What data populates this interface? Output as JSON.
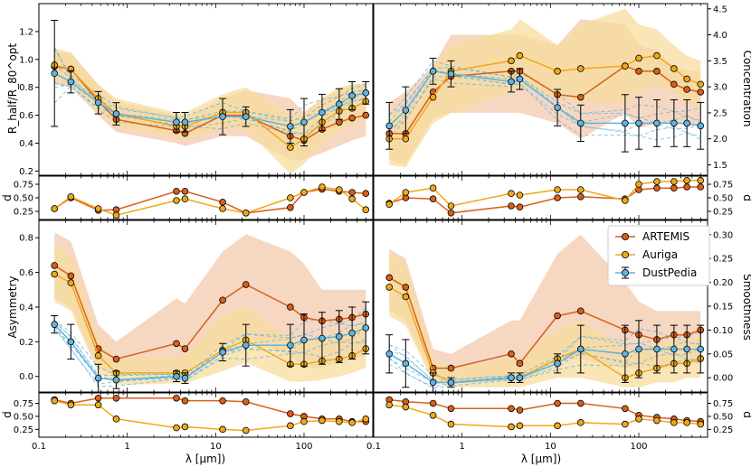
{
  "colors": {
    "artemis": "#d95f1a",
    "auriga": "#f0a81a",
    "dustpedia": "#5fb4e0",
    "artemis_band": "#f3c9ac",
    "auriga_band": "#f7dc9d",
    "dash": "#5fb4e0"
  },
  "legend": {
    "artemis": "ARTEMIS",
    "auriga": "Auriga",
    "dustpedia": "DustPedia"
  },
  "axes": {
    "xlabel": "λ [μm])",
    "xticks": [
      "0.1",
      "1",
      "10",
      "100"
    ],
    "rhalf_label": "R_half/R_80^opt",
    "concentration_label": "Concentration",
    "asymmetry_label": "Asymmetry",
    "smoothness_label": "Smoothness",
    "d_label": "d"
  },
  "chart_data": [
    {
      "type": "line",
      "panel": "rhalf",
      "title": "",
      "xlabel": "",
      "ylabel": "R_half/R_80^opt",
      "xscale": "log",
      "xlim": [
        0.1,
        600
      ],
      "ylim": [
        0.17,
        1.4
      ],
      "yticks": [
        0.2,
        0.4,
        0.6,
        0.8,
        1.0,
        1.2
      ],
      "x": [
        0.15,
        0.23,
        0.47,
        0.75,
        3.6,
        4.5,
        12,
        22,
        70,
        100,
        160,
        250,
        350,
        500
      ],
      "series": [
        {
          "name": "ARTEMIS",
          "values": [
            0.95,
            0.93,
            0.7,
            0.57,
            0.49,
            0.47,
            0.6,
            0.6,
            0.45,
            0.42,
            0.5,
            0.55,
            0.58,
            0.6
          ],
          "band_low": [
            0.82,
            0.8,
            0.6,
            0.48,
            0.4,
            0.38,
            0.45,
            0.45,
            0.28,
            0.28,
            0.33,
            0.38,
            0.42,
            0.45
          ],
          "band_high": [
            1.05,
            1.05,
            0.82,
            0.7,
            0.6,
            0.58,
            0.72,
            0.78,
            0.72,
            0.62,
            0.72,
            0.78,
            0.82,
            0.82
          ]
        },
        {
          "name": "Auriga",
          "values": [
            0.96,
            0.93,
            0.72,
            0.61,
            0.52,
            0.52,
            0.62,
            0.62,
            0.37,
            0.43,
            0.55,
            0.63,
            0.65,
            0.7
          ],
          "band_low": [
            0.85,
            0.82,
            0.62,
            0.52,
            0.44,
            0.44,
            0.5,
            0.5,
            0.18,
            0.25,
            0.4,
            0.5,
            0.53,
            0.58
          ],
          "band_high": [
            1.08,
            1.05,
            0.82,
            0.72,
            0.62,
            0.62,
            0.75,
            0.8,
            0.6,
            0.62,
            0.72,
            0.8,
            0.82,
            0.83
          ]
        },
        {
          "name": "DustPedia",
          "values": [
            0.9,
            0.84,
            0.69,
            0.61,
            0.55,
            0.55,
            0.59,
            0.59,
            0.52,
            0.55,
            0.62,
            0.68,
            0.74,
            0.76
          ],
          "err": [
            0.38,
            0.08,
            0.08,
            0.08,
            0.07,
            0.07,
            0.13,
            0.07,
            0.12,
            0.17,
            0.13,
            0.11,
            0.1,
            0.08
          ]
        }
      ]
    },
    {
      "type": "line",
      "panel": "concentration",
      "title": "",
      "xlabel": "",
      "ylabel": "Concentration",
      "xscale": "log",
      "xlim": [
        0.1,
        600
      ],
      "ylim": [
        1.3,
        4.6
      ],
      "yticks": [
        1.5,
        2.0,
        2.5,
        3.0,
        3.5,
        4.0,
        4.5
      ],
      "x": [
        0.15,
        0.23,
        0.47,
        0.75,
        3.6,
        4.5,
        12,
        22,
        70,
        100,
        160,
        250,
        350,
        500
      ],
      "series": [
        {
          "name": "ARTEMIS",
          "values": [
            2.1,
            2.1,
            2.9,
            3.2,
            3.3,
            3.3,
            2.85,
            2.8,
            3.4,
            3.3,
            3.3,
            3.05,
            2.95,
            2.9
          ],
          "band_low": [
            1.6,
            1.5,
            2.4,
            2.5,
            2.5,
            2.5,
            2.3,
            2.0,
            2.5,
            2.2,
            2.3,
            2.3,
            2.25,
            2.25
          ],
          "band_high": [
            2.7,
            2.9,
            3.4,
            4.0,
            4.0,
            4.0,
            3.8,
            4.3,
            4.2,
            3.8,
            3.7,
            3.4,
            3.3,
            3.3
          ]
        },
        {
          "name": "Auriga",
          "values": [
            2.0,
            2.0,
            2.8,
            3.3,
            3.5,
            3.6,
            3.3,
            3.35,
            3.4,
            3.55,
            3.6,
            3.35,
            3.15,
            3.05
          ],
          "band_low": [
            1.5,
            1.45,
            2.3,
            2.5,
            2.9,
            3.0,
            2.8,
            2.7,
            2.7,
            2.9,
            3.0,
            2.9,
            2.7,
            2.6
          ],
          "band_high": [
            2.5,
            2.5,
            3.4,
            3.8,
            4.1,
            4.3,
            3.8,
            4.2,
            4.5,
            4.2,
            4.1,
            3.8,
            3.6,
            3.5
          ]
        },
        {
          "name": "DustPedia",
          "values": [
            2.25,
            2.55,
            3.3,
            3.25,
            3.1,
            3.15,
            2.6,
            2.3,
            2.3,
            2.3,
            2.3,
            2.3,
            2.3,
            2.25
          ],
          "err": [
            0.45,
            0.45,
            0.25,
            0.25,
            0.2,
            0.2,
            0.35,
            0.35,
            0.55,
            0.5,
            0.45,
            0.45,
            0.45,
            0.45
          ]
        }
      ]
    },
    {
      "type": "line",
      "panel": "rhalf_d",
      "title": "",
      "xlabel": "",
      "ylabel": "d",
      "xscale": "log",
      "xlim": [
        0.1,
        600
      ],
      "ylim": [
        0.1,
        0.9
      ],
      "yticks": [
        0.25,
        0.5,
        0.75
      ],
      "x": [
        0.15,
        0.23,
        0.47,
        0.75,
        3.6,
        4.5,
        12,
        22,
        70,
        100,
        160,
        250,
        350,
        500
      ],
      "series": [
        {
          "name": "ARTEMIS",
          "values": [
            0.3,
            0.5,
            0.27,
            0.28,
            0.62,
            0.62,
            0.42,
            0.22,
            0.32,
            0.6,
            0.66,
            0.62,
            0.6,
            0.58
          ]
        },
        {
          "name": "Auriga",
          "values": [
            0.3,
            0.52,
            0.3,
            0.18,
            0.45,
            0.48,
            0.3,
            0.22,
            0.5,
            0.6,
            0.7,
            0.65,
            0.48,
            0.28
          ]
        }
      ]
    },
    {
      "type": "line",
      "panel": "concentration_d",
      "title": "",
      "xlabel": "",
      "ylabel": "d",
      "xscale": "log",
      "xlim": [
        0.1,
        600
      ],
      "ylim": [
        0.1,
        0.9
      ],
      "yticks": [
        0.25,
        0.5,
        0.75
      ],
      "x": [
        0.15,
        0.23,
        0.47,
        0.75,
        3.6,
        4.5,
        12,
        22,
        70,
        100,
        160,
        250,
        350,
        500
      ],
      "series": [
        {
          "name": "ARTEMIS",
          "values": [
            0.4,
            0.5,
            0.48,
            0.22,
            0.35,
            0.33,
            0.5,
            0.52,
            0.48,
            0.65,
            0.68,
            0.68,
            0.7,
            0.7
          ]
        },
        {
          "name": "Auriga",
          "values": [
            0.38,
            0.6,
            0.68,
            0.35,
            0.58,
            0.55,
            0.65,
            0.65,
            0.45,
            0.75,
            0.8,
            0.8,
            0.82,
            0.82
          ]
        }
      ]
    },
    {
      "type": "line",
      "panel": "asymmetry",
      "title": "",
      "xlabel": "",
      "ylabel": "Asymmetry",
      "xscale": "log",
      "xlim": [
        0.1,
        600
      ],
      "ylim": [
        -0.09,
        0.9
      ],
      "yticks": [
        0.0,
        0.2,
        0.4,
        0.6,
        0.8
      ],
      "x": [
        0.15,
        0.23,
        0.47,
        0.75,
        3.6,
        4.5,
        12,
        22,
        70,
        100,
        160,
        250,
        350,
        500
      ],
      "series": [
        {
          "name": "ARTEMIS",
          "values": [
            0.64,
            0.58,
            0.16,
            0.1,
            0.19,
            0.16,
            0.44,
            0.53,
            0.4,
            0.34,
            0.32,
            0.33,
            0.34,
            0.36
          ],
          "band_low": [
            0.45,
            0.4,
            0.05,
            0.0,
            0.03,
            0.02,
            0.18,
            0.22,
            0.12,
            0.05,
            0.05,
            0.08,
            0.1,
            0.12
          ],
          "band_high": [
            0.83,
            0.78,
            0.3,
            0.2,
            0.45,
            0.42,
            0.72,
            0.82,
            0.72,
            0.65,
            0.5,
            0.5,
            0.5,
            0.5
          ]
        },
        {
          "name": "Auriga",
          "values": [
            0.59,
            0.54,
            0.12,
            0.02,
            0.02,
            0.02,
            0.15,
            0.21,
            0.07,
            0.07,
            0.09,
            0.1,
            0.12,
            0.16
          ],
          "band_low": [
            0.43,
            0.38,
            0.02,
            -0.05,
            -0.04,
            -0.04,
            0.03,
            0.08,
            -0.03,
            -0.03,
            -0.02,
            0.0,
            0.02,
            0.05
          ],
          "band_high": [
            0.75,
            0.7,
            0.22,
            0.1,
            0.12,
            0.12,
            0.35,
            0.4,
            0.22,
            0.2,
            0.22,
            0.25,
            0.28,
            0.32
          ]
        },
        {
          "name": "DustPedia",
          "values": [
            0.3,
            0.2,
            -0.01,
            -0.02,
            0.0,
            -0.01,
            0.14,
            0.18,
            0.18,
            0.21,
            0.22,
            0.23,
            0.25,
            0.28
          ],
          "err": [
            0.05,
            0.1,
            0.08,
            0.05,
            0.03,
            0.03,
            0.05,
            0.12,
            0.12,
            0.15,
            0.15,
            0.15,
            0.15,
            0.15
          ]
        }
      ]
    },
    {
      "type": "line",
      "panel": "smoothness",
      "title": "",
      "xlabel": "",
      "ylabel": "Smoothness",
      "xscale": "log",
      "xlim": [
        0.1,
        600
      ],
      "ylim": [
        -0.03,
        0.33
      ],
      "yticks": [
        0.0,
        0.05,
        0.1,
        0.15,
        0.2,
        0.25,
        0.3
      ],
      "x": [
        0.15,
        0.23,
        0.47,
        0.75,
        3.6,
        4.5,
        12,
        22,
        70,
        100,
        160,
        250,
        350,
        500
      ],
      "series": [
        {
          "name": "ARTEMIS",
          "values": [
            0.21,
            0.19,
            0.02,
            0.02,
            0.05,
            0.03,
            0.13,
            0.14,
            0.1,
            0.09,
            0.08,
            0.09,
            0.09,
            0.1
          ],
          "band_low": [
            0.14,
            0.12,
            0.0,
            -0.01,
            0.0,
            -0.01,
            0.04,
            0.04,
            0.02,
            0.02,
            0.02,
            0.02,
            0.03,
            0.03
          ],
          "band_high": [
            0.27,
            0.25,
            0.06,
            0.05,
            0.12,
            0.12,
            0.26,
            0.3,
            0.2,
            0.16,
            0.14,
            0.14,
            0.14,
            0.14
          ]
        },
        {
          "name": "Auriga",
          "values": [
            0.19,
            0.17,
            0.01,
            -0.01,
            0.0,
            0.0,
            0.04,
            0.06,
            0.0,
            0.01,
            0.02,
            0.03,
            0.03,
            0.04
          ],
          "band_low": [
            0.13,
            0.11,
            -0.01,
            -0.02,
            -0.02,
            -0.02,
            0.0,
            0.0,
            -0.02,
            -0.02,
            -0.01,
            -0.01,
            0.0,
            0.0
          ],
          "band_high": [
            0.26,
            0.24,
            0.04,
            0.02,
            0.04,
            0.04,
            0.1,
            0.12,
            0.06,
            0.06,
            0.07,
            0.08,
            0.08,
            0.09
          ]
        },
        {
          "name": "DustPedia",
          "values": [
            0.05,
            0.03,
            -0.01,
            -0.01,
            0.0,
            0.0,
            0.03,
            0.06,
            0.05,
            0.06,
            0.06,
            0.06,
            0.06,
            0.06
          ],
          "err": [
            0.04,
            0.05,
            0.02,
            0.01,
            0.01,
            0.01,
            0.02,
            0.05,
            0.06,
            0.06,
            0.05,
            0.05,
            0.05,
            0.05
          ]
        }
      ]
    },
    {
      "type": "line",
      "panel": "asymmetry_d",
      "title": "",
      "xlabel": "",
      "ylabel": "d",
      "xscale": "log",
      "xlim": [
        0.1,
        600
      ],
      "ylim": [
        0.1,
        0.95
      ],
      "yticks": [
        0.25,
        0.5,
        0.75
      ],
      "x": [
        0.15,
        0.23,
        0.47,
        0.75,
        3.6,
        4.5,
        12,
        22,
        70,
        100,
        160,
        250,
        350,
        500
      ],
      "series": [
        {
          "name": "ARTEMIS",
          "values": [
            0.82,
            0.75,
            0.85,
            0.85,
            0.85,
            0.8,
            0.8,
            0.78,
            0.55,
            0.5,
            0.45,
            0.45,
            0.4,
            0.4
          ]
        },
        {
          "name": "Auriga",
          "values": [
            0.8,
            0.72,
            0.72,
            0.45,
            0.28,
            0.3,
            0.25,
            0.23,
            0.32,
            0.4,
            0.42,
            0.4,
            0.38,
            0.45
          ]
        }
      ]
    },
    {
      "type": "line",
      "panel": "smoothness_d",
      "title": "",
      "xlabel": "",
      "ylabel": "d",
      "xscale": "log",
      "xlim": [
        0.1,
        600
      ],
      "ylim": [
        0.1,
        0.95
      ],
      "yticks": [
        0.25,
        0.5,
        0.75
      ],
      "x": [
        0.15,
        0.23,
        0.47,
        0.75,
        3.6,
        4.5,
        12,
        22,
        70,
        100,
        160,
        250,
        350,
        500
      ],
      "series": [
        {
          "name": "ARTEMIS",
          "values": [
            0.82,
            0.78,
            0.75,
            0.65,
            0.65,
            0.62,
            0.75,
            0.75,
            0.65,
            0.52,
            0.48,
            0.45,
            0.42,
            0.4
          ]
        },
        {
          "name": "Auriga",
          "values": [
            0.72,
            0.68,
            0.52,
            0.35,
            0.3,
            0.32,
            0.32,
            0.38,
            0.35,
            0.45,
            0.42,
            0.38,
            0.38,
            0.35
          ]
        }
      ]
    }
  ]
}
